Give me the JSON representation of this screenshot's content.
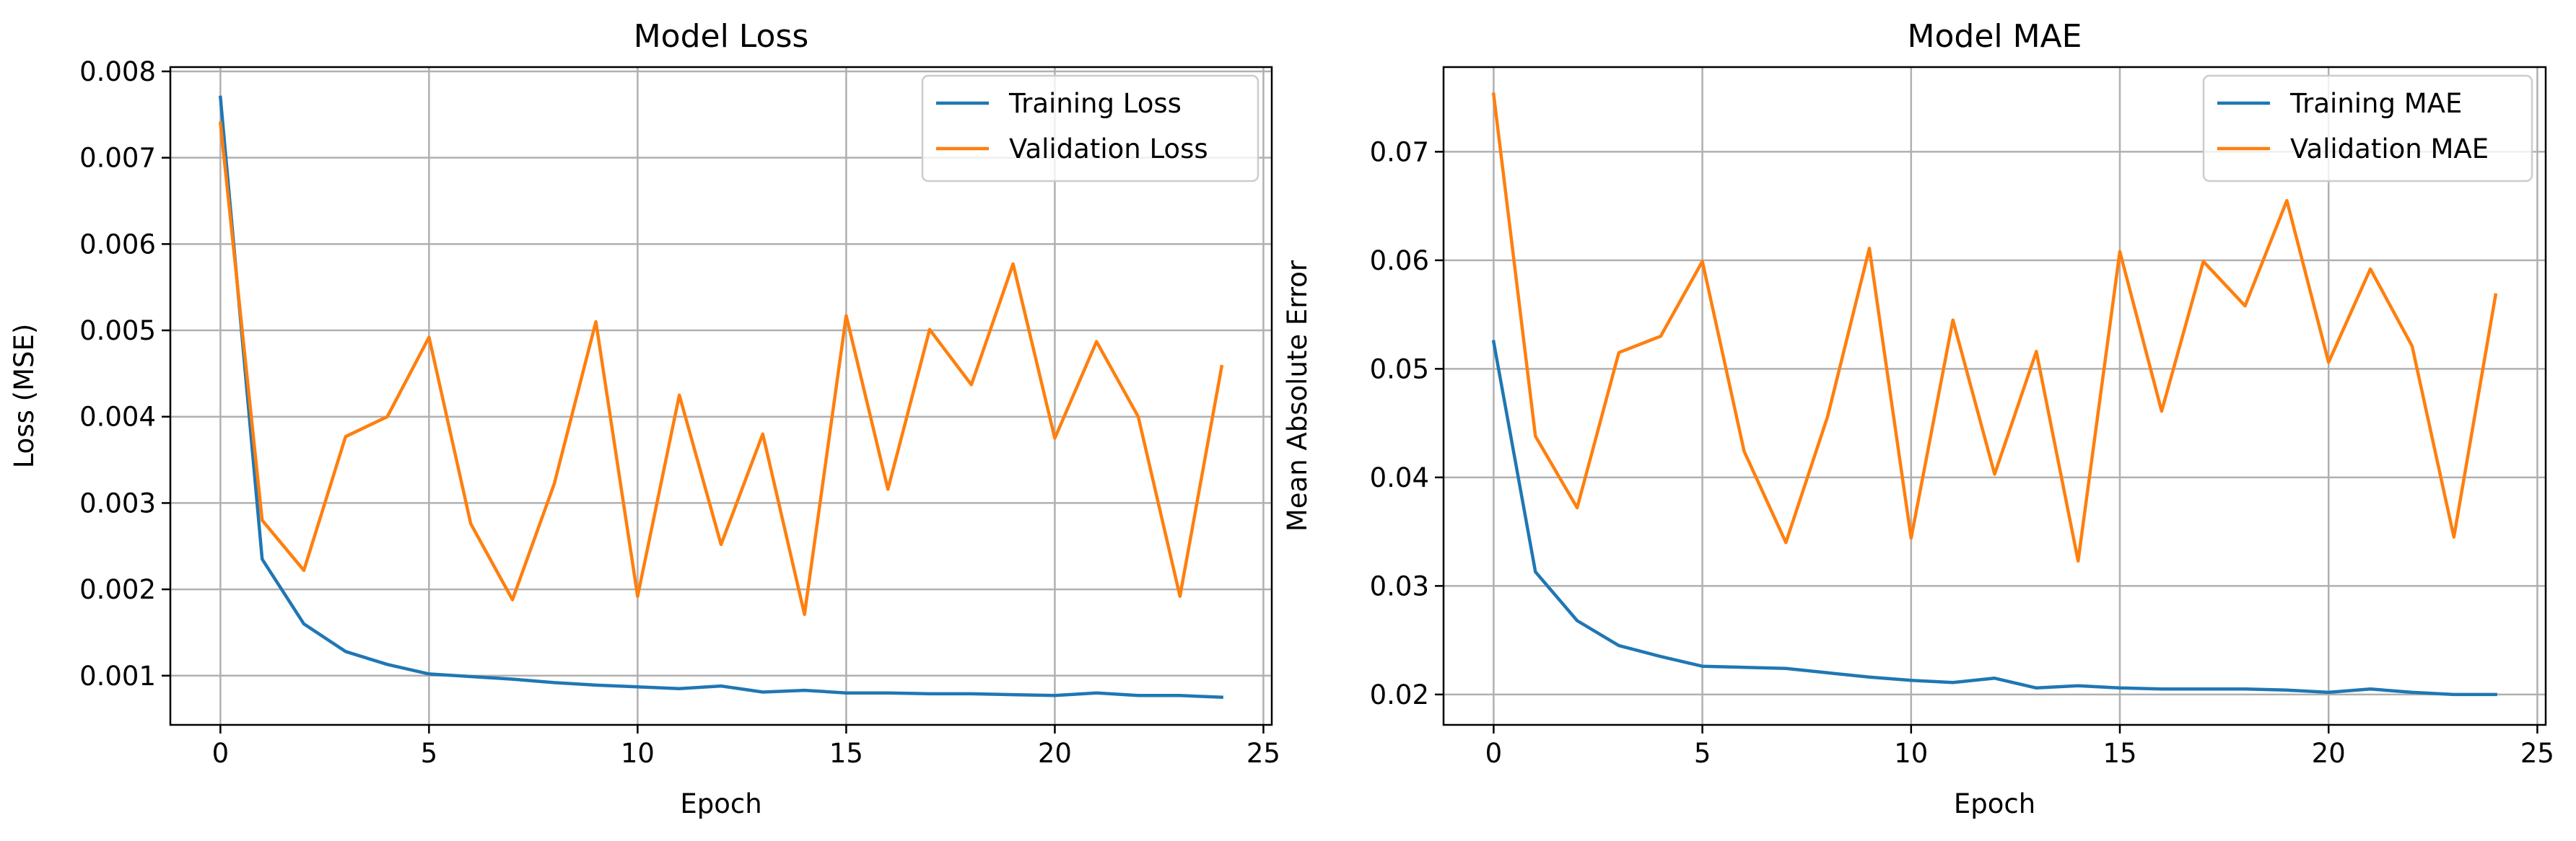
{
  "chart_data": [
    {
      "type": "line",
      "title": "Model Loss",
      "xlabel": "Epoch",
      "ylabel": "Loss (MSE)",
      "xlim": [
        -1.2,
        25.2
      ],
      "ylim": [
        0.00043,
        0.00805
      ],
      "xticks": [
        0,
        5,
        10,
        15,
        20,
        25
      ],
      "xtick_labels": [
        "0",
        "5",
        "10",
        "15",
        "20",
        "25"
      ],
      "yticks": [
        0.001,
        0.002,
        0.003,
        0.004,
        0.005,
        0.006,
        0.007,
        0.008
      ],
      "ytick_labels": [
        "0.001",
        "0.002",
        "0.003",
        "0.004",
        "0.005",
        "0.006",
        "0.007",
        "0.008"
      ],
      "grid": true,
      "legend_position": "top-right",
      "x": [
        0,
        1,
        2,
        3,
        4,
        5,
        6,
        7,
        8,
        9,
        10,
        11,
        12,
        13,
        14,
        15,
        16,
        17,
        18,
        19,
        20,
        21,
        22,
        23,
        24
      ],
      "series": [
        {
          "name": "Training Loss",
          "color": "#1f77b4",
          "values": [
            0.0077,
            0.00235,
            0.0016,
            0.00128,
            0.00113,
            0.00102,
            0.00099,
            0.00096,
            0.00092,
            0.00089,
            0.00087,
            0.00085,
            0.00088,
            0.00081,
            0.00083,
            0.0008,
            0.0008,
            0.00079,
            0.00079,
            0.00078,
            0.00077,
            0.0008,
            0.00077,
            0.00077,
            0.00075
          ]
        },
        {
          "name": "Validation Loss",
          "color": "#ff7f0e",
          "values": [
            0.0074,
            0.0028,
            0.00222,
            0.00377,
            0.004,
            0.00492,
            0.00276,
            0.00188,
            0.00322,
            0.0051,
            0.00192,
            0.00425,
            0.00252,
            0.0038,
            0.00171,
            0.00517,
            0.00316,
            0.00501,
            0.00437,
            0.00577,
            0.00375,
            0.00487,
            0.004,
            0.00192,
            0.00458
          ]
        }
      ]
    },
    {
      "type": "line",
      "title": "Model MAE",
      "xlabel": "Epoch",
      "ylabel": "Mean Absolute Error",
      "xlim": [
        -1.2,
        25.2
      ],
      "ylim": [
        0.0172,
        0.0778
      ],
      "xticks": [
        0,
        5,
        10,
        15,
        20,
        25
      ],
      "xtick_labels": [
        "0",
        "5",
        "10",
        "15",
        "20",
        "25"
      ],
      "yticks": [
        0.02,
        0.03,
        0.04,
        0.05,
        0.06,
        0.07
      ],
      "ytick_labels": [
        "0.02",
        "0.03",
        "0.04",
        "0.05",
        "0.06",
        "0.07"
      ],
      "grid": true,
      "legend_position": "top-right",
      "x": [
        0,
        1,
        2,
        3,
        4,
        5,
        6,
        7,
        8,
        9,
        10,
        11,
        12,
        13,
        14,
        15,
        16,
        17,
        18,
        19,
        20,
        21,
        22,
        23,
        24
      ],
      "series": [
        {
          "name": "Training MAE",
          "color": "#1f77b4",
          "values": [
            0.0525,
            0.0313,
            0.0268,
            0.0245,
            0.0235,
            0.0226,
            0.0225,
            0.0224,
            0.022,
            0.0216,
            0.0213,
            0.0211,
            0.0215,
            0.0206,
            0.0208,
            0.0206,
            0.0205,
            0.0205,
            0.0205,
            0.0204,
            0.0202,
            0.0205,
            0.0202,
            0.02,
            0.02
          ]
        },
        {
          "name": "Validation MAE",
          "color": "#ff7f0e",
          "values": [
            0.0753,
            0.0438,
            0.0372,
            0.0515,
            0.053,
            0.0599,
            0.0424,
            0.034,
            0.0456,
            0.0611,
            0.0344,
            0.0545,
            0.0403,
            0.0516,
            0.0323,
            0.0608,
            0.0461,
            0.0599,
            0.0558,
            0.0655,
            0.0506,
            0.0592,
            0.0521,
            0.0345,
            0.0568
          ]
        }
      ]
    }
  ]
}
